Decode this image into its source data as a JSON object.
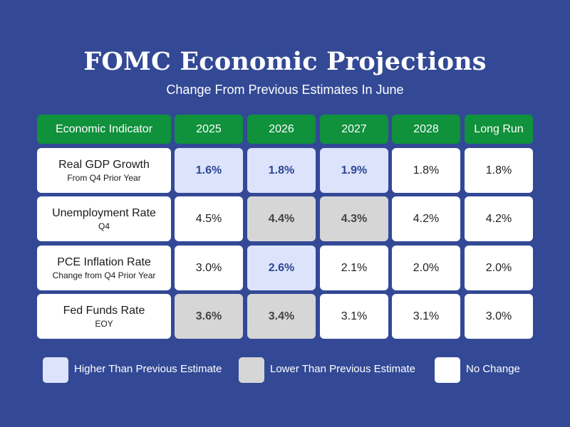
{
  "title": "FOMC Economic Projections",
  "subtitle": "Change From Previous Estimates In June",
  "colors": {
    "background": "#334996",
    "header": "#10913c",
    "higher": "#dce3fb",
    "lower": "#d6d6d6",
    "no_change": "#ffffff"
  },
  "chart_data": {
    "type": "table",
    "title": "FOMC Economic Projections",
    "subtitle": "Change From Previous Estimates In June",
    "columns": [
      "Economic Indicator",
      "2025",
      "2026",
      "2027",
      "2028",
      "Long Run"
    ],
    "rows": [
      {
        "indicator": "Real GDP Growth",
        "sub": "From Q4 Prior Year",
        "values": [
          "1.6%",
          "1.8%",
          "1.9%",
          "1.8%",
          "1.8%"
        ],
        "status": [
          "higher",
          "higher",
          "higher",
          "same",
          "same"
        ]
      },
      {
        "indicator": "Unemployment Rate",
        "sub": "Q4",
        "values": [
          "4.5%",
          "4.4%",
          "4.3%",
          "4.2%",
          "4.2%"
        ],
        "status": [
          "same",
          "lower",
          "lower",
          "same",
          "same"
        ]
      },
      {
        "indicator": "PCE Inflation Rate",
        "sub": "Change from Q4 Prior Year",
        "values": [
          "3.0%",
          "2.6%",
          "2.1%",
          "2.0%",
          "2.0%"
        ],
        "status": [
          "same",
          "higher",
          "same",
          "same",
          "same"
        ]
      },
      {
        "indicator": "Fed Funds Rate",
        "sub": "EOY",
        "values": [
          "3.6%",
          "3.4%",
          "3.1%",
          "3.1%",
          "3.0%"
        ],
        "status": [
          "lower",
          "lower",
          "same",
          "same",
          "same"
        ]
      }
    ],
    "legend": [
      {
        "key": "higher",
        "label": "Higher Than Previous Estimate"
      },
      {
        "key": "lower",
        "label": "Lower Than Previous Estimate"
      },
      {
        "key": "same",
        "label": "No Change"
      }
    ]
  }
}
